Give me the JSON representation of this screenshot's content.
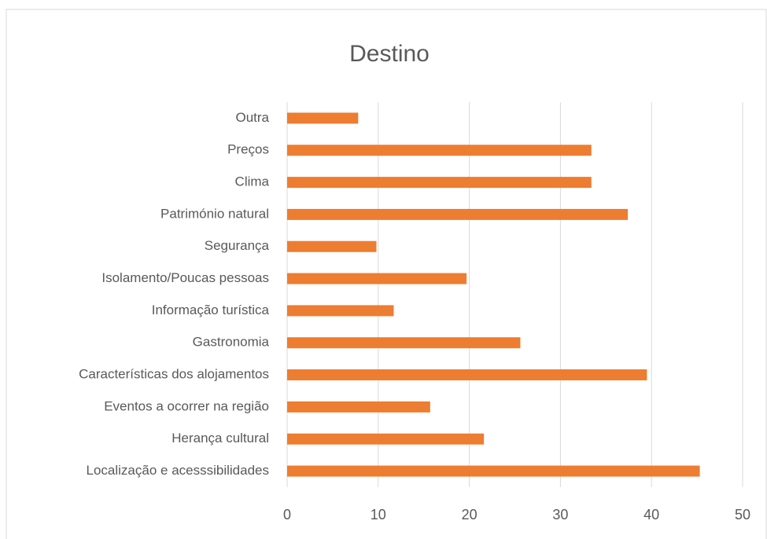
{
  "chart_data": {
    "type": "hbar",
    "title": "Destino",
    "categories": [
      "Outra",
      "Preços",
      "Clima",
      "Património natural",
      "Segurança",
      "Isolamento/Poucas pessoas",
      "Informação turística",
      "Gastronomia",
      "Características dos alojamentos",
      "Eventos a ocorrer na região",
      "Herança cultural ",
      "Localização e acesssibilidades"
    ],
    "values": [
      7.8,
      33.4,
      33.4,
      37.4,
      9.8,
      19.7,
      11.7,
      25.6,
      39.5,
      15.7,
      21.6,
      45.3
    ],
    "color": "#ed7d31",
    "xlim": [
      0,
      50
    ],
    "xticks": [
      0,
      10,
      20,
      30,
      40,
      50
    ],
    "grid": true
  }
}
